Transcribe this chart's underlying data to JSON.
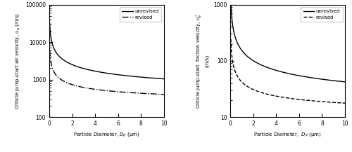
{
  "left": {
    "ylabel_line1": "Criticle jump-start air velocity,",
    "ylabel_line2": "uₑ (m/s)",
    "xlabel": "Particle Diameter, D",
    "xlabel_sub": "P",
    "xlabel_unit": " (μm)",
    "xlim": [
      0,
      10
    ],
    "ylim": [
      100,
      100000
    ],
    "xticks": [
      0,
      2,
      4,
      6,
      8,
      10
    ],
    "yticks": [
      100,
      1000,
      10000,
      100000
    ],
    "ytick_labels": [
      "100",
      "1000",
      "10000",
      "100000"
    ],
    "legend_entries": [
      "unrevised",
      "revised"
    ],
    "line_styles": [
      "-",
      "-."
    ],
    "unrev_params": {
      "a": 3500,
      "b": 0.68,
      "c": 310
    },
    "rev_params": {
      "a": 800,
      "b": 0.62,
      "c": 210
    }
  },
  "right": {
    "ylabel_line1": "Criticle jump-start  friction velocity,",
    "ylabel_line2": "uₑ* (m/s)",
    "xlabel": "Particle Diameter,  D",
    "xlabel_sub": "P",
    "xlabel_unit": " (μm)",
    "xlim": [
      0,
      10
    ],
    "ylim": [
      10,
      1000
    ],
    "xticks": [
      0,
      2,
      4,
      6,
      8,
      10
    ],
    "yticks": [
      10,
      100,
      1000
    ],
    "ytick_labels": [
      "10",
      "100",
      "1000"
    ],
    "legend_entries": [
      "unrevised",
      "revised"
    ],
    "line_styles": [
      "-",
      "--"
    ],
    "unrev_params": {
      "a": 140,
      "b": 0.68,
      "c": 13
    },
    "rev_params": {
      "a": 32,
      "b": 0.62,
      "c": 10
    }
  },
  "figsize": [
    5.0,
    2.17
  ],
  "dpi": 100,
  "lw": 1.0,
  "tick_fontsize": 5.5,
  "label_fontsize": 5.0,
  "legend_fontsize": 5.0
}
